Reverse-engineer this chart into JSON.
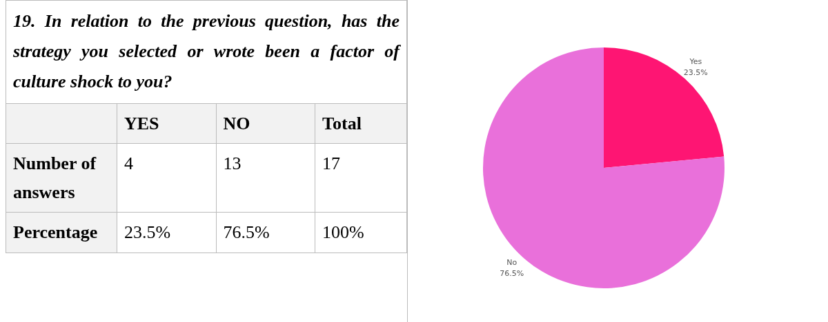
{
  "chart_data": [
    {
      "type": "other",
      "title": "19. In relation to the previous question, has the strategy you selected or wrote been a factor of culture shock to you?",
      "categories": [
        null,
        "YES",
        "NO",
        "Total"
      ],
      "y_categories": [
        "Number of answers",
        "Percentage"
      ],
      "cell_labels": [
        [
          "4",
          "13",
          "17"
        ],
        [
          "23.5%",
          "76.5%",
          "100%"
        ]
      ]
    },
    {
      "type": "pie",
      "categories": [
        "Yes",
        "No"
      ],
      "values": [
        23.5,
        76.5
      ],
      "colors": [
        "#fe1573",
        "#e970da"
      ],
      "value_labels": [
        "23.5%",
        "76.5%"
      ]
    }
  ]
}
